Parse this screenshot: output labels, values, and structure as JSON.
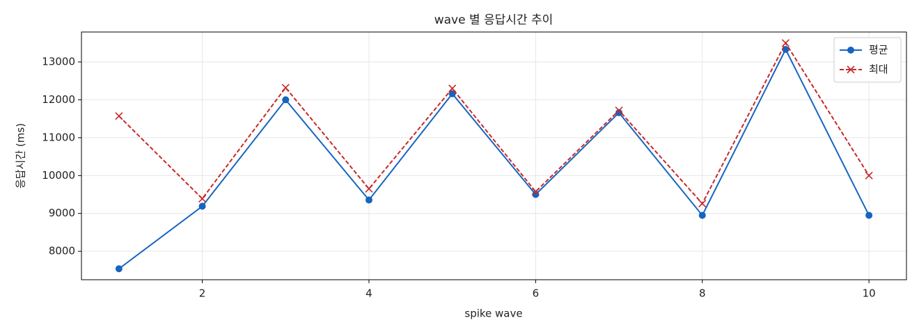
{
  "chart_data": {
    "type": "line",
    "title": "wave 별 응답시간 추이",
    "x_label": "spike wave",
    "y_label": "응답시간 (ms)",
    "x": [
      1,
      2,
      3,
      4,
      5,
      6,
      7,
      8,
      9,
      10
    ],
    "series": [
      {
        "name": "평균",
        "color": "#1565c0",
        "marker": "o",
        "dash": false,
        "values": [
          7540,
          9190,
          12000,
          9355,
          12160,
          9500,
          11660,
          8950,
          13330,
          8950
        ]
      },
      {
        "name": "최대",
        "color": "#c62828",
        "marker": "x",
        "dash": true,
        "values": [
          11570,
          9390,
          12320,
          9650,
          12300,
          9575,
          11720,
          9260,
          13500,
          10000
        ]
      }
    ],
    "xlim": [
      0.55,
      10.45
    ],
    "xticks": [
      2,
      4,
      6,
      8,
      10
    ],
    "ylim": [
      7250,
      13790
    ],
    "yticks": [
      8000,
      9000,
      10000,
      11000,
      12000,
      13000
    ],
    "grid": true,
    "legend": "upper right"
  }
}
